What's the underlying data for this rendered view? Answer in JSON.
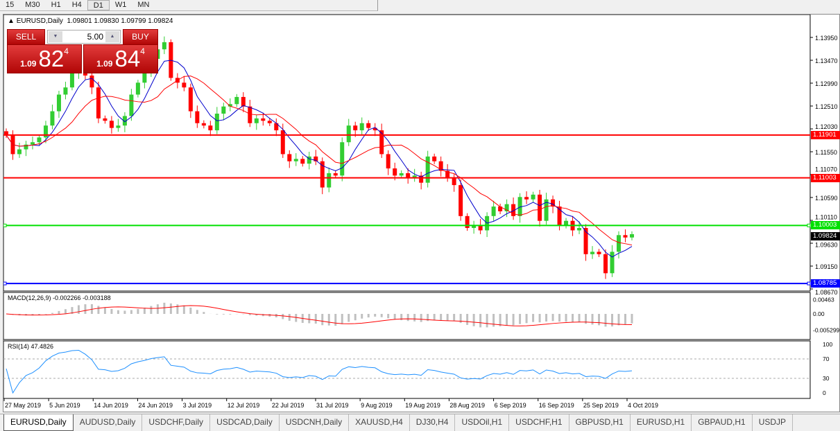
{
  "timeframes": [
    "15",
    "M30",
    "H1",
    "H4",
    "D1",
    "W1",
    "MN"
  ],
  "active_timeframe": "D1",
  "chart": {
    "title": "EURUSD,Daily",
    "ohlc": "1.09801 1.09830 1.09799 1.09824"
  },
  "one_click": {
    "sell_label": "SELL",
    "buy_label": "BUY",
    "lot": "5.00",
    "bid": {
      "small": "1.09",
      "big": "82",
      "tiny": "4"
    },
    "ask": {
      "small": "1.09",
      "big": "84",
      "tiny": "4"
    }
  },
  "price_axis": [
    "1.13950",
    "1.13470",
    "1.12990",
    "1.12510",
    "1.12030",
    "1.11550",
    "1.11070",
    "1.10590",
    "1.10110",
    "1.09630",
    "1.09150",
    "1.08670"
  ],
  "hlines": [
    {
      "price": 1.11901,
      "label": "1.11901",
      "color": "#ff0000"
    },
    {
      "price": 1.11003,
      "label": "1.11003",
      "color": "#ff0000"
    },
    {
      "price": 1.10003,
      "label": "1.10003",
      "color": "#00e000"
    },
    {
      "price": 1.08785,
      "label": "1.08785",
      "color": "#0000ff"
    }
  ],
  "current_price": {
    "price": 1.09824,
    "label": "1.09824"
  },
  "colors": {
    "bull": "#32cd32",
    "bear": "#ff0000",
    "ma_fast": "#0000cc",
    "ma_slow": "#ff0000",
    "macd_hist": "#c0c0c0",
    "macd_signal": "#ff0000",
    "rsi": "#1e90ff"
  },
  "closes": [
    1.119,
    1.115,
    1.116,
    1.117,
    1.1175,
    1.1185,
    1.121,
    1.124,
    1.1275,
    1.129,
    1.132,
    1.133,
    1.1315,
    1.129,
    1.1225,
    1.122,
    1.1205,
    1.121,
    1.123,
    1.1275,
    1.13,
    1.132,
    1.135,
    1.137,
    1.1385,
    1.131,
    1.13,
    1.129,
    1.124,
    1.1215,
    1.121,
    1.12,
    1.1235,
    1.125,
    1.1255,
    1.127,
    1.125,
    1.1215,
    1.1225,
    1.122,
    1.1215,
    1.12,
    1.115,
    1.1135,
    1.114,
    1.113,
    1.1145,
    1.1135,
    1.108,
    1.111,
    1.1105,
    1.1175,
    1.121,
    1.12,
    1.1215,
    1.1205,
    1.12,
    1.115,
    1.112,
    1.1105,
    1.111,
    1.11,
    1.1105,
    1.109,
    1.1145,
    1.1135,
    1.1115,
    1.11,
    1.1085,
    1.102,
    1.0995,
    1.1,
    1.099,
    1.102,
    1.104,
    1.103,
    1.1045,
    1.102,
    1.106,
    1.1055,
    1.1065,
    1.101,
    1.1055,
    1.104,
    1.1,
    1.101,
    1.099,
    1.0995,
    1.094,
    1.0945,
    1.094,
    1.09,
    1.0945,
    1.098,
    1.0975,
    1.0982
  ],
  "macd": {
    "label": "MACD(12,26,9) -0.002266 -0.003188",
    "axis": [
      "0.00463",
      "0.00",
      "-0.005299"
    ]
  },
  "rsi": {
    "label": "RSI(14) 47.4826",
    "axis": [
      "100",
      "70",
      "30",
      "0"
    ]
  },
  "dates": [
    "27 May 2019",
    "5 Jun 2019",
    "14 Jun 2019",
    "24 Jun 2019",
    "3 Jul 2019",
    "12 Jul 2019",
    "22 Jul 2019",
    "31 Jul 2019",
    "9 Aug 2019",
    "19 Aug 2019",
    "28 Aug 2019",
    "6 Sep 2019",
    "16 Sep 2019",
    "25 Sep 2019",
    "4 Oct 2019"
  ],
  "tabs": [
    "EURUSD,Daily",
    "AUDUSD,Daily",
    "USDCHF,Daily",
    "USDCAD,Daily",
    "USDCNH,Daily",
    "XAUUSD,H4",
    "DJ30,H4",
    "USDOil,H1",
    "USDCHF,H1",
    "GBPUSD,H1",
    "EURUSD,H1",
    "GBPAUD,H1",
    "USDJP"
  ],
  "active_tab": "EURUSD,Daily"
}
